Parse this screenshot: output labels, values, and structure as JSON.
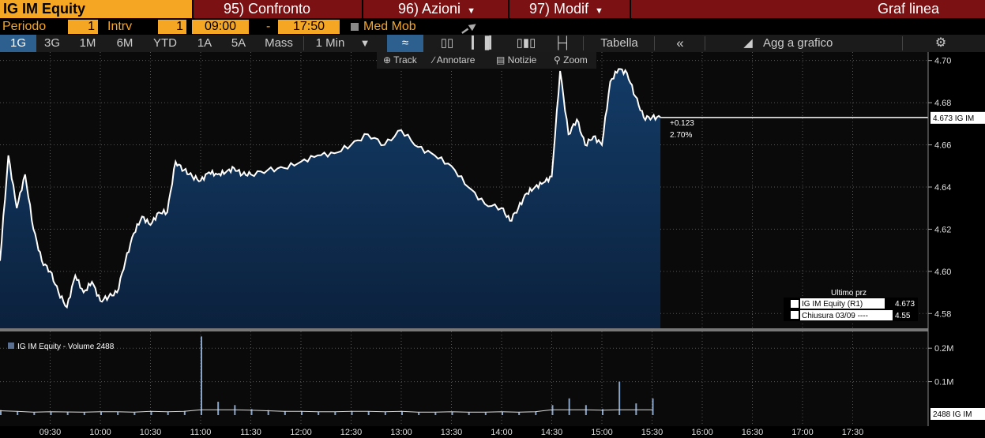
{
  "header": {
    "ticker": "IG IM Equity",
    "menu": [
      {
        "label": "95) Confronto"
      },
      {
        "label": "96) Azioni"
      },
      {
        "label": "97) Modif"
      }
    ],
    "chart_type_label": "Graf linea"
  },
  "settings": {
    "period_label": "Periodo",
    "period_value": "1",
    "interval_label": "Intrv",
    "interval_value": "1",
    "time_from": "09:00",
    "dash": "-",
    "time_to": "17:50",
    "med_mob": "Med Mob"
  },
  "toolbar": {
    "ranges": [
      "1G",
      "3G",
      "1M",
      "6M",
      "YTD",
      "1A",
      "5A",
      "Mass"
    ],
    "active_range": "1G",
    "interval_select": "1 Min",
    "table": "Tabella",
    "collapse": "«",
    "add_to_chart": "Agg a grafico"
  },
  "subtools": {
    "track": "Track",
    "annotate": "Annotare",
    "news": "Notizie",
    "zoom": "Zoom"
  },
  "colors": {
    "accent": "#f5a623",
    "topbar": "#7b1113",
    "area_fill": "#0f2a4a",
    "line": "#ffffff"
  },
  "chart_data": [
    {
      "type": "area",
      "y_axis_ticks": [
        "4.70",
        "4.68",
        "4.66",
        "4.64",
        "4.62",
        "4.60",
        "4.58"
      ],
      "ylim": [
        4.573,
        4.704
      ],
      "x_axis_ticks": [
        "09:30",
        "10:00",
        "10:30",
        "11:00",
        "11:30",
        "12:00",
        "12:30",
        "13:00",
        "13:30",
        "14:00",
        "14:30",
        "15:00",
        "15:30",
        "16:00",
        "16:30",
        "17:00",
        "17:30"
      ],
      "change_abs": "+0.123",
      "change_pct": "2.70%",
      "last_tag": "4.673 IG IM",
      "last_value": 4.673,
      "legend_title": "Ultimo prz",
      "legend": [
        {
          "name": "IG IM Equity  (R1)",
          "value": "4.673"
        },
        {
          "name": "Chiusura 03/09 ----",
          "value": "4.55"
        }
      ],
      "series": [
        {
          "name": "IG IM Equity",
          "x": [
            "09:00",
            "09:05",
            "09:10",
            "09:15",
            "09:20",
            "09:25",
            "09:30",
            "09:35",
            "09:40",
            "09:45",
            "09:50",
            "09:55",
            "10:00",
            "10:05",
            "10:10",
            "10:15",
            "10:20",
            "10:25",
            "10:30",
            "10:35",
            "10:40",
            "10:45",
            "10:50",
            "10:55",
            "11:00",
            "11:05",
            "11:10",
            "11:15",
            "11:20",
            "11:25",
            "11:30",
            "11:40",
            "11:50",
            "12:00",
            "12:10",
            "12:20",
            "12:30",
            "12:40",
            "12:50",
            "13:00",
            "13:10",
            "13:20",
            "13:30",
            "13:40",
            "13:50",
            "14:00",
            "14:05",
            "14:10",
            "14:15",
            "14:20",
            "14:25",
            "14:30",
            "14:35",
            "14:40",
            "14:45",
            "14:50",
            "14:55",
            "15:00",
            "15:05",
            "15:10",
            "15:15",
            "15:20",
            "15:25",
            "15:30",
            "15:35"
          ],
          "values": [
            4.605,
            4.655,
            4.63,
            4.646,
            4.62,
            4.605,
            4.6,
            4.59,
            4.583,
            4.598,
            4.59,
            4.595,
            4.586,
            4.588,
            4.59,
            4.605,
            4.618,
            4.626,
            4.622,
            4.628,
            4.628,
            4.652,
            4.648,
            4.645,
            4.643,
            4.647,
            4.646,
            4.647,
            4.649,
            4.646,
            4.646,
            4.648,
            4.649,
            4.652,
            4.655,
            4.656,
            4.66,
            4.665,
            4.66,
            4.667,
            4.659,
            4.655,
            4.65,
            4.64,
            4.632,
            4.63,
            4.624,
            4.63,
            4.637,
            4.64,
            4.642,
            4.645,
            4.695,
            4.665,
            4.672,
            4.66,
            4.664,
            4.66,
            4.69,
            4.696,
            4.694,
            4.683,
            4.673,
            4.673,
            4.673
          ]
        }
      ]
    },
    {
      "type": "bar",
      "title": "IG IM Equity - Volume 2488",
      "y_axis_ticks": [
        "0.2M",
        "0.1M"
      ],
      "ylim": [
        0,
        0.25
      ],
      "last_tag": "2488 IG IM",
      "series": [
        {
          "name": "Volume",
          "x": [
            "09:00",
            "09:10",
            "09:20",
            "09:30",
            "09:40",
            "09:50",
            "10:00",
            "10:10",
            "10:20",
            "10:30",
            "10:40",
            "10:50",
            "11:00",
            "11:10",
            "11:20",
            "11:30",
            "11:40",
            "11:50",
            "12:00",
            "12:10",
            "12:20",
            "12:30",
            "12:40",
            "12:50",
            "13:00",
            "13:10",
            "13:20",
            "13:30",
            "13:40",
            "13:50",
            "14:00",
            "14:10",
            "14:20",
            "14:30",
            "14:40",
            "14:50",
            "15:00",
            "15:10",
            "15:20",
            "15:30"
          ],
          "values": [
            0.015,
            0.012,
            0.008,
            0.01,
            0.009,
            0.008,
            0.01,
            0.01,
            0.008,
            0.012,
            0.01,
            0.012,
            0.235,
            0.04,
            0.03,
            0.018,
            0.015,
            0.012,
            0.012,
            0.01,
            0.01,
            0.012,
            0.012,
            0.01,
            0.012,
            0.008,
            0.008,
            0.01,
            0.008,
            0.008,
            0.01,
            0.008,
            0.01,
            0.03,
            0.05,
            0.03,
            0.018,
            0.1,
            0.035,
            0.05
          ]
        }
      ]
    }
  ]
}
